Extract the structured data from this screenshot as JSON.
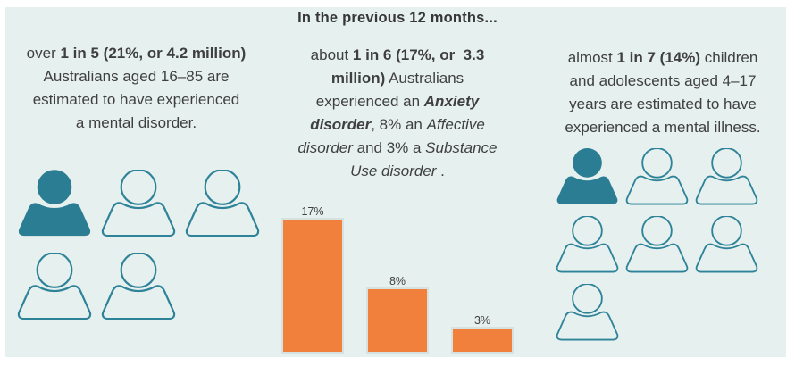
{
  "title": {
    "text": "In the previous 12 months..."
  },
  "colors": {
    "background": "#e6f0ee",
    "teal_fill": "#2a7d92",
    "teal_outline": "#2e8399",
    "orange": "#f0803c",
    "bar_border": "#d5e2e0",
    "text": "#3f3f3f"
  },
  "panels": {
    "left": {
      "lines": [
        [
          {
            "text": "over "
          },
          {
            "text": "1 in 5 (21%, or 4.2 million)",
            "bold": true
          }
        ],
        [
          {
            "text": "Australians aged 16–85 are"
          }
        ],
        [
          {
            "text": "estimated to have experienced"
          }
        ],
        [
          {
            "text": "a mental disorder."
          }
        ]
      ],
      "icons": {
        "rows": [
          3,
          2
        ],
        "total": 5,
        "filled_count": 1
      }
    },
    "middle": {
      "lines": [
        [
          {
            "text": "about "
          },
          {
            "text": "1 in 6 (17%, or  3.3",
            "bold": true
          }
        ],
        [
          {
            "text": "million)",
            "bold": true
          },
          {
            "text": " Australians"
          }
        ],
        [
          {
            "text": "experienced an "
          },
          {
            "text": "Anxiety",
            "bold": true,
            "italic": true
          }
        ],
        [
          {
            "text": "disorder",
            "bold": true,
            "italic": true
          },
          {
            "text": ", 8% an "
          },
          {
            "text": "Affective",
            "italic": true
          }
        ],
        [
          {
            "text": "disorder",
            "italic": true
          },
          {
            "text": " and 3% a "
          },
          {
            "text": "Substance",
            "italic": true
          }
        ],
        [
          {
            "text": "Use disorder",
            "italic": true
          },
          {
            "text": " ."
          }
        ]
      ]
    },
    "right": {
      "lines": [
        [
          {
            "text": "almost "
          },
          {
            "text": "1 in 7 (14%)",
            "bold": true
          },
          {
            "text": " children"
          }
        ],
        [
          {
            "text": "and adolescents aged 4–17"
          }
        ],
        [
          {
            "text": "years are estimated to have"
          }
        ],
        [
          {
            "text": "experienced a mental illness."
          }
        ]
      ],
      "icons": {
        "rows": [
          3,
          3,
          1
        ],
        "total": 7,
        "filled_count": 1
      }
    }
  },
  "chart_data": {
    "type": "bar",
    "categories": [
      "Anxiety disorder",
      "Affective disorder",
      "Substance Use disorder"
    ],
    "values": [
      17,
      8,
      3
    ],
    "labels": [
      "17%",
      "8%",
      "3%"
    ],
    "title": "",
    "xlabel": "",
    "ylabel": "",
    "ylim": [
      0,
      18
    ],
    "bar_color": "#f0803c",
    "grid": false,
    "legend": false,
    "data_labels_position": "above-bars"
  }
}
